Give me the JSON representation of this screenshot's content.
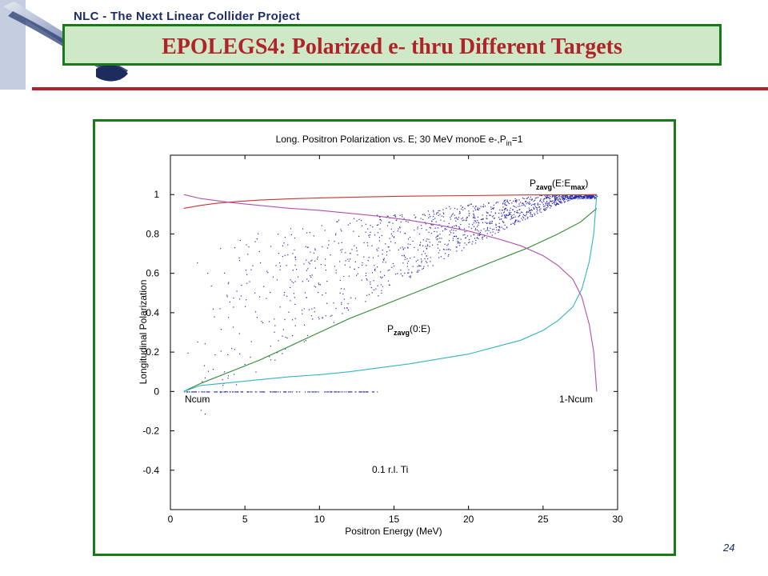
{
  "header": {
    "project": "NLC - The Next Linear Collider Project",
    "title": "EPOLEGS4: Polarized e- thru Different Targets"
  },
  "footer": {
    "page_number": "24"
  },
  "colors": {
    "title_red": "#b0232a",
    "frame_green": "#1a7a1a",
    "title_bg": "#cfe9c6",
    "header_blue": "#1b2b6b"
  },
  "chart_data": {
    "type": "line",
    "title_main": "Long. Positron Polarization vs. E; 30 MeV monoE e-,P",
    "title_sub": "in",
    "title_tail": "=1",
    "xlabel": "Positron Energy (MeV)",
    "ylabel": "Longitudinal Polarization",
    "xlim": [
      0,
      30
    ],
    "ylim": [
      -0.6,
      1.2
    ],
    "xticks": [
      0,
      5,
      10,
      15,
      20,
      25,
      30
    ],
    "yticks": [
      -0.4,
      -0.2,
      0,
      0.2,
      0.4,
      0.6,
      0.8,
      1
    ],
    "annotations": {
      "pz_max_main": "P",
      "pz_max_sub": "zavg",
      "pz_max_arg": "(E:E",
      "pz_max_argsub": "max",
      "pz_max_close": ")",
      "pz_zero_main": "P",
      "pz_zero_sub": "zavg",
      "pz_zero_arg": "(0:E)",
      "ncum": "Ncum",
      "one_minus_ncum": "1-Ncum",
      "target": "0.1 r.l. Ti"
    },
    "series": [
      {
        "label_key": "pz_max",
        "color": "#cc3333",
        "x": [
          0.9,
          2,
          3,
          4,
          6,
          8,
          10,
          13,
          16,
          20,
          24,
          27.5,
          28.6
        ],
        "y": [
          0.93,
          0.945,
          0.955,
          0.962,
          0.972,
          0.978,
          0.983,
          0.988,
          0.992,
          0.995,
          0.998,
          0.999,
          1.0
        ]
      },
      {
        "label_key": "pz_zero",
        "color": "#2e8b2e",
        "x": [
          0.9,
          2,
          4,
          6,
          8,
          10,
          12,
          14,
          16,
          18,
          20,
          22,
          24,
          26,
          27.5,
          28.6
        ],
        "y": [
          0.0,
          0.04,
          0.1,
          0.16,
          0.23,
          0.3,
          0.37,
          0.43,
          0.49,
          0.55,
          0.61,
          0.67,
          0.73,
          0.8,
          0.86,
          0.93
        ]
      },
      {
        "label_key": "ncum",
        "color": "#33b5c0",
        "x": [
          0.9,
          2,
          4,
          6,
          8,
          10,
          12,
          14,
          16,
          18,
          20,
          22,
          23.5,
          25,
          26,
          27,
          27.6,
          28.1,
          28.4,
          28.6
        ],
        "y": [
          0.0,
          0.03,
          0.045,
          0.06,
          0.075,
          0.085,
          0.1,
          0.12,
          0.14,
          0.165,
          0.19,
          0.23,
          0.26,
          0.31,
          0.36,
          0.43,
          0.52,
          0.66,
          0.8,
          1.0
        ]
      },
      {
        "label_key": "one_minus_ncum",
        "color": "#b050b0",
        "x": [
          0.9,
          2,
          4,
          6,
          8,
          10,
          12,
          14,
          16,
          18,
          20,
          22,
          23.5,
          25,
          26,
          27,
          27.6,
          28.1,
          28.4,
          28.6
        ],
        "y": [
          1.0,
          0.98,
          0.96,
          0.945,
          0.93,
          0.92,
          0.905,
          0.89,
          0.87,
          0.845,
          0.815,
          0.775,
          0.74,
          0.69,
          0.64,
          0.57,
          0.48,
          0.34,
          0.2,
          0.0
        ]
      }
    ],
    "scatter": {
      "color": "#2a2ab0",
      "description_key": "polarization of individual positrons"
    },
    "grid": false,
    "legend": "none"
  }
}
